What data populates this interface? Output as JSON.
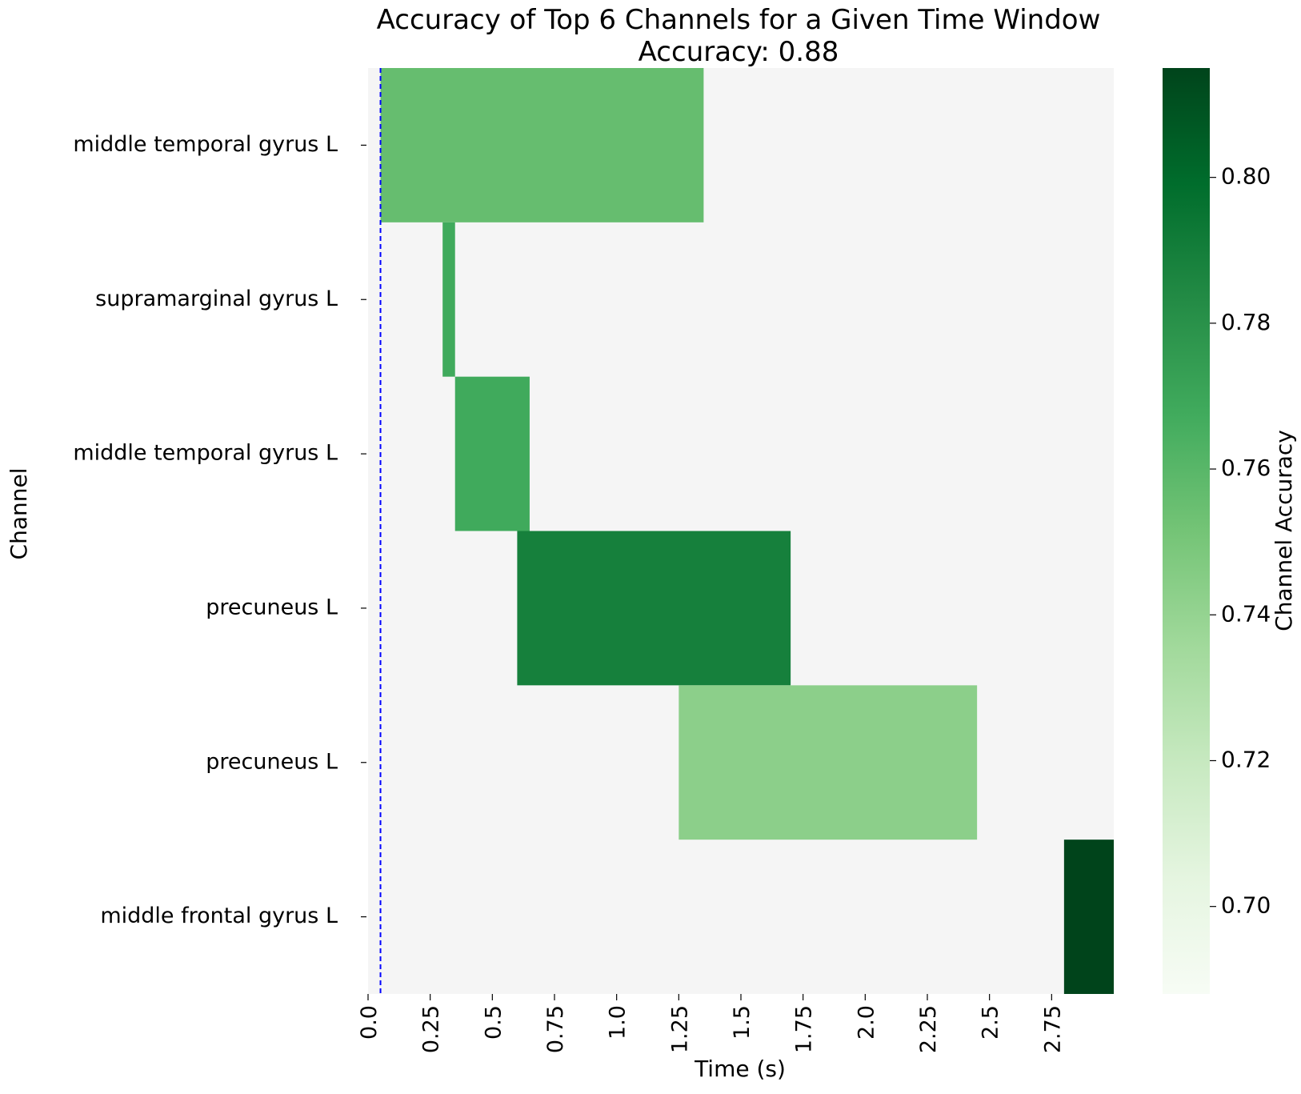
{
  "chart_data": {
    "type": "heatmap",
    "title": "Accuracy of Top 6 Channels for a Given Time Window",
    "subtitle": "Accuracy: 0.88",
    "xlabel": "Time (s)",
    "ylabel": "Channel",
    "colorbar_label": "Channel Accuracy",
    "colormap": "Greens",
    "background_color": "#f5f5f5",
    "xlim": [
      0.0,
      3.0
    ],
    "x_ticks": [
      0.0,
      0.25,
      0.5,
      0.75,
      1.0,
      1.25,
      1.5,
      1.75,
      2.0,
      2.25,
      2.5,
      2.75
    ],
    "x_tick_labels": [
      "0.0",
      "0.25",
      "0.5",
      "0.75",
      "1.0",
      "1.25",
      "1.5",
      "1.75",
      "2.0",
      "2.25",
      "2.5",
      "2.75"
    ],
    "colorbar_range": [
      0.688,
      0.815
    ],
    "colorbar_ticks": [
      0.7,
      0.72,
      0.74,
      0.76,
      0.78,
      0.8
    ],
    "colorbar_tick_labels": [
      "0.70",
      "0.72",
      "0.74",
      "0.76",
      "0.78",
      "0.80"
    ],
    "reference_line": {
      "x": 0.05,
      "color": "#0000ff",
      "style": "dashed"
    },
    "channels": [
      {
        "label": "middle temporal gyrus L",
        "start": 0.05,
        "end": 1.35,
        "accuracy": 0.756
      },
      {
        "label": "supramarginal gyrus L",
        "start": 0.3,
        "end": 0.35,
        "accuracy": 0.768
      },
      {
        "label": "middle temporal gyrus L",
        "start": 0.35,
        "end": 0.65,
        "accuracy": 0.768
      },
      {
        "label": "precuneus L",
        "start": 0.6,
        "end": 1.7,
        "accuracy": 0.789
      },
      {
        "label": "precuneus L",
        "start": 1.25,
        "end": 2.45,
        "accuracy": 0.743
      },
      {
        "label": "middle frontal gyrus L",
        "start": 2.8,
        "end": 3.0,
        "accuracy": 0.815
      }
    ]
  }
}
